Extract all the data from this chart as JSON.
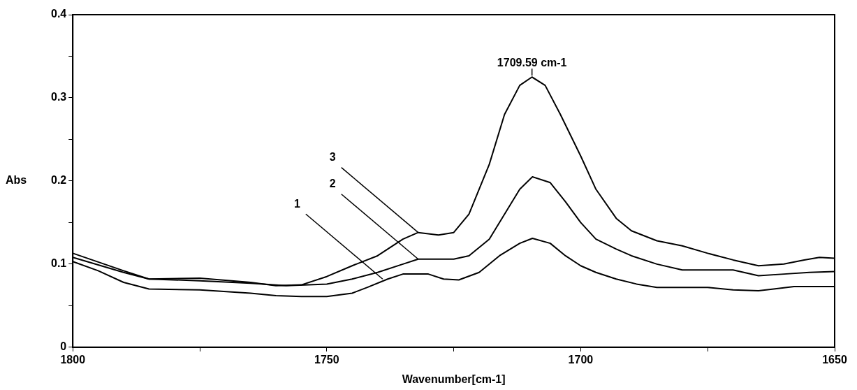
{
  "chart_data": {
    "type": "line",
    "xlabel": "Wavenumber[cm-1]",
    "ylabel": "Abs",
    "xlim": [
      1800,
      1650
    ],
    "xticks": [
      1800,
      {
        "value": 1775,
        "label": null
      },
      1750,
      {
        "value": 1725,
        "label": null
      },
      1700,
      {
        "value": 1675,
        "label": null
      },
      1650
    ],
    "ylim": [
      0,
      0.4
    ],
    "yticks": [
      0,
      {
        "value": 0.05,
        "label": null
      },
      0.1,
      {
        "value": 0.15,
        "label": null
      },
      0.2,
      {
        "value": 0.25,
        "label": null
      },
      0.3,
      {
        "value": 0.35,
        "label": null
      },
      0.4
    ],
    "grid": false,
    "legend": false,
    "marker": "none",
    "line_style": "solid",
    "annotations": [
      {
        "text": "1709.59 cm-1",
        "x": 1709.59,
        "y": 0.325
      },
      {
        "text": "3",
        "x": 1732,
        "y": 0.138
      },
      {
        "text": "2",
        "x": 1732,
        "y": 0.106
      },
      {
        "text": "1",
        "x": 1739,
        "y": 0.082
      }
    ],
    "series": [
      {
        "color": "#000000",
        "x": [
          1800,
          1795,
          1790,
          1785,
          1775,
          1765,
          1760,
          1755,
          1750,
          1745,
          1742,
          1738,
          1735,
          1730,
          1727,
          1724,
          1720,
          1716,
          1712,
          1709.5,
          1706,
          1703,
          1700,
          1697,
          1693,
          1689,
          1685,
          1675,
          1670,
          1665,
          1662,
          1658,
          1650
        ],
        "values": [
          0.103,
          0.092,
          0.078,
          0.07,
          0.069,
          0.065,
          0.062,
          0.061,
          0.061,
          0.065,
          0.072,
          0.082,
          0.088,
          0.088,
          0.082,
          0.081,
          0.09,
          0.11,
          0.125,
          0.131,
          0.125,
          0.11,
          0.098,
          0.09,
          0.082,
          0.076,
          0.072,
          0.072,
          0.069,
          0.068,
          0.07,
          0.073,
          0.073
        ]
      },
      {
        "color": "#000000",
        "x": [
          1800,
          1790,
          1785,
          1775,
          1765,
          1758,
          1750,
          1745,
          1740,
          1735,
          1732,
          1725,
          1722,
          1718,
          1715,
          1712,
          1709.5,
          1706,
          1703,
          1700,
          1697,
          1693,
          1690,
          1685,
          1680,
          1675,
          1670,
          1665,
          1660,
          1655,
          1650
        ],
        "values": [
          0.108,
          0.09,
          0.082,
          0.08,
          0.077,
          0.074,
          0.076,
          0.082,
          0.09,
          0.1,
          0.106,
          0.106,
          0.11,
          0.13,
          0.16,
          0.19,
          0.205,
          0.198,
          0.175,
          0.15,
          0.13,
          0.118,
          0.11,
          0.1,
          0.093,
          0.093,
          0.093,
          0.086,
          0.088,
          0.09,
          0.091
        ]
      },
      {
        "color": "#000000",
        "x": [
          1800,
          1790,
          1785,
          1775,
          1765,
          1760,
          1755,
          1750,
          1745,
          1740,
          1735,
          1732,
          1728,
          1725,
          1722,
          1718,
          1715,
          1712,
          1709.6,
          1707,
          1704,
          1700,
          1697,
          1693,
          1690,
          1685,
          1680,
          1675,
          1670,
          1665,
          1660,
          1656,
          1653,
          1650
        ],
        "values": [
          0.113,
          0.092,
          0.082,
          0.083,
          0.078,
          0.074,
          0.075,
          0.085,
          0.098,
          0.11,
          0.13,
          0.138,
          0.135,
          0.138,
          0.16,
          0.22,
          0.28,
          0.315,
          0.325,
          0.315,
          0.28,
          0.23,
          0.19,
          0.155,
          0.14,
          0.128,
          0.122,
          0.113,
          0.105,
          0.098,
          0.1,
          0.105,
          0.108,
          0.107
        ]
      }
    ]
  }
}
